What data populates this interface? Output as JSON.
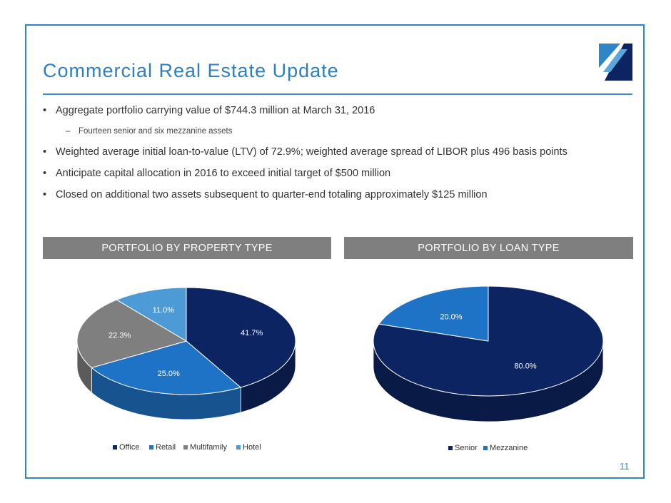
{
  "title": "Commercial Real Estate Update",
  "bullets": [
    "Aggregate portfolio carrying value of $744.3 million at March 31, 2016",
    "Weighted average initial loan-to-value (LTV) of 72.9%; weighted average spread of LIBOR plus 496 basis points",
    "Anticipate capital allocation in 2016 to exceed initial target of $500 million",
    "Closed on additional two assets subsequent to quarter-end totaling approximately $125 million"
  ],
  "sub_bullet": "Fourteen senior and six mezzanine assets",
  "bullet_glyph": "•",
  "dash_glyph": "–",
  "page_number": "11",
  "colors": {
    "accent": "#2f86c6",
    "header_bg": "#7f7f7f"
  },
  "chart_data": [
    {
      "type": "pie",
      "title": "PORTFOLIO BY PROPERTY TYPE",
      "categories": [
        "Office",
        "Retail",
        "Multifamily",
        "Hotel"
      ],
      "values": [
        41.7,
        25.0,
        22.3,
        11.0
      ],
      "labels": [
        "41.7%",
        "25.0%",
        "22.3%",
        "11.0%"
      ],
      "colors": [
        "#0d2462",
        "#1f73c7",
        "#7f7f7f",
        "#4c9bd6"
      ],
      "legend": "bottom"
    },
    {
      "type": "pie",
      "title": "PORTFOLIO BY LOAN TYPE",
      "categories": [
        "Senior",
        "Mezzanine"
      ],
      "values": [
        80.0,
        20.0
      ],
      "labels": [
        "80.0%",
        "20.0%"
      ],
      "colors": [
        "#0d2462",
        "#1f73c7"
      ],
      "legend": "bottom"
    }
  ]
}
